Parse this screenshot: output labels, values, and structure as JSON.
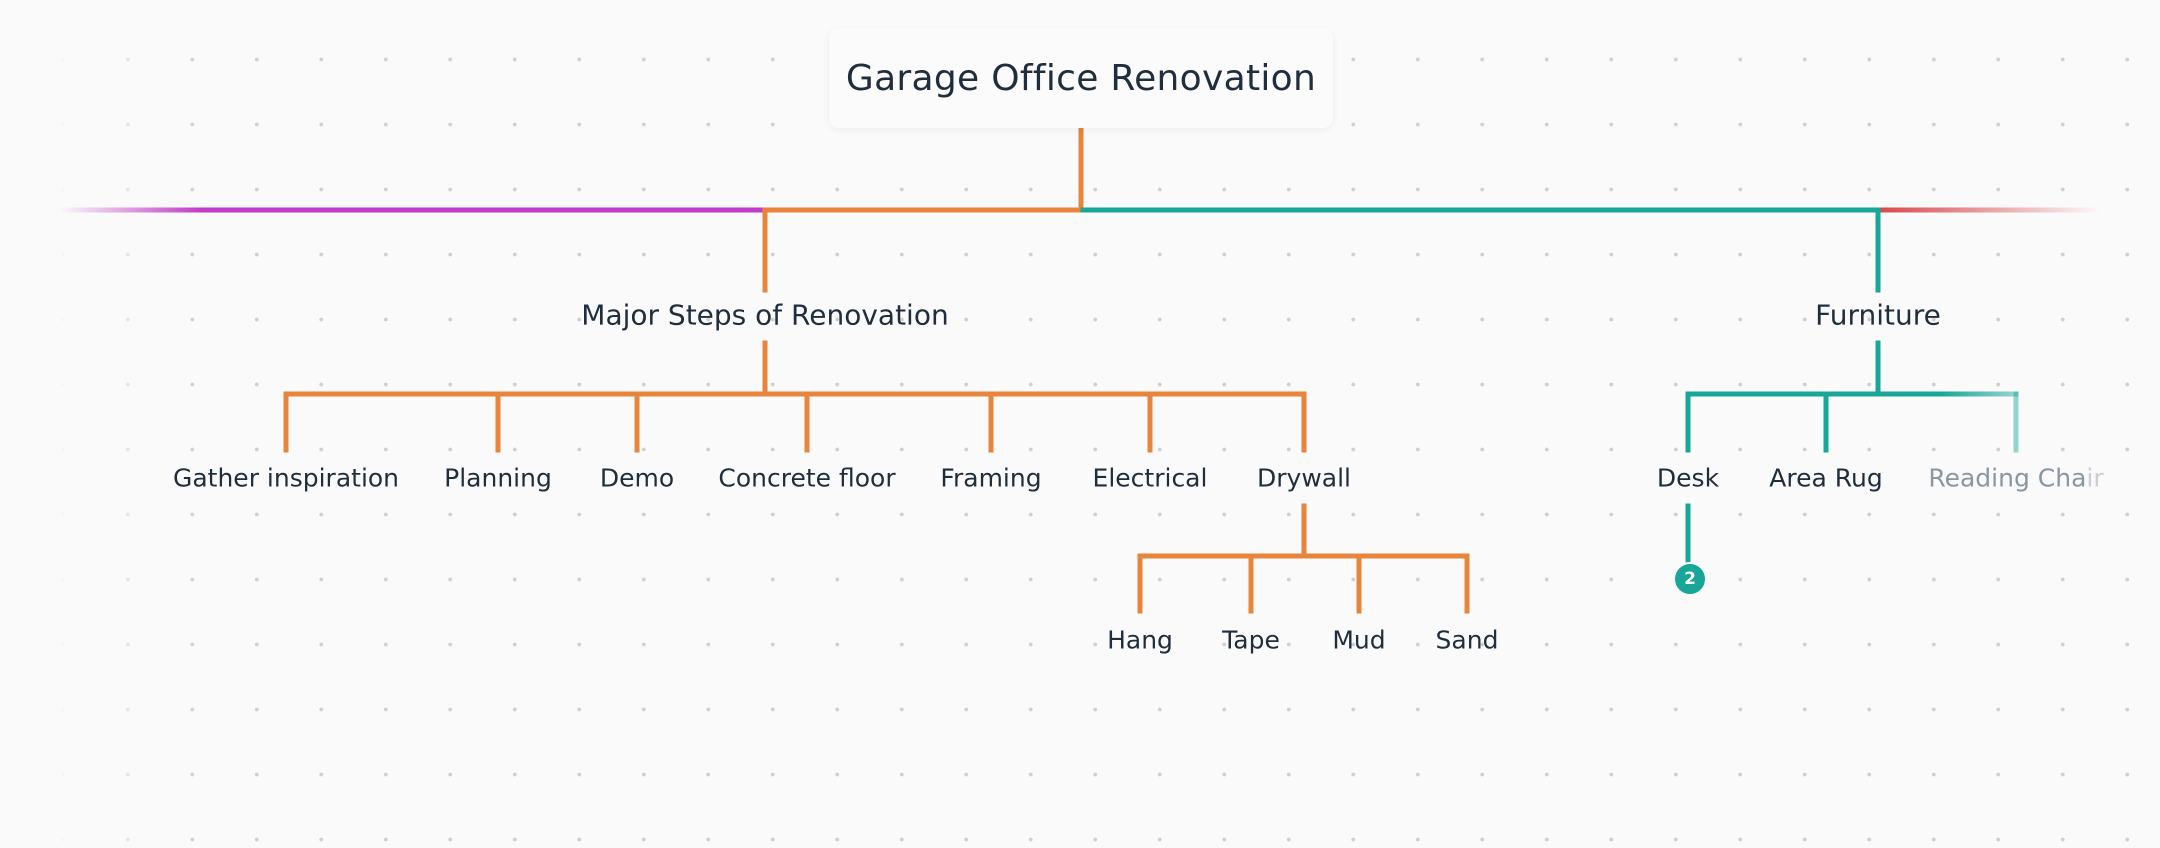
{
  "root": {
    "title": "Garage Office Renovation"
  },
  "branches": {
    "major_steps": {
      "label": "Major Steps of Renovation",
      "color": "#e8843b",
      "children": [
        "Gather inspiration",
        "Planning",
        "Demo",
        "Concrete floor",
        "Framing",
        "Electrical",
        "Drywall"
      ],
      "drywall_children": [
        "Hang",
        "Tape",
        "Mud",
        "Sand"
      ]
    },
    "furniture": {
      "label": "Furniture",
      "color": "#17a697",
      "children": [
        "Desk",
        "Area Rug",
        "Reading Chair"
      ],
      "reading_chair_visible": "Reading Cha",
      "reading_chair_cut": "ir",
      "desk_badge": "2"
    }
  },
  "colors": {
    "left_offscreen_branch": "#c23ac8",
    "right_offscreen_branch": "#d9474b",
    "text": "#1f2d3d",
    "background": "#fafafa"
  }
}
